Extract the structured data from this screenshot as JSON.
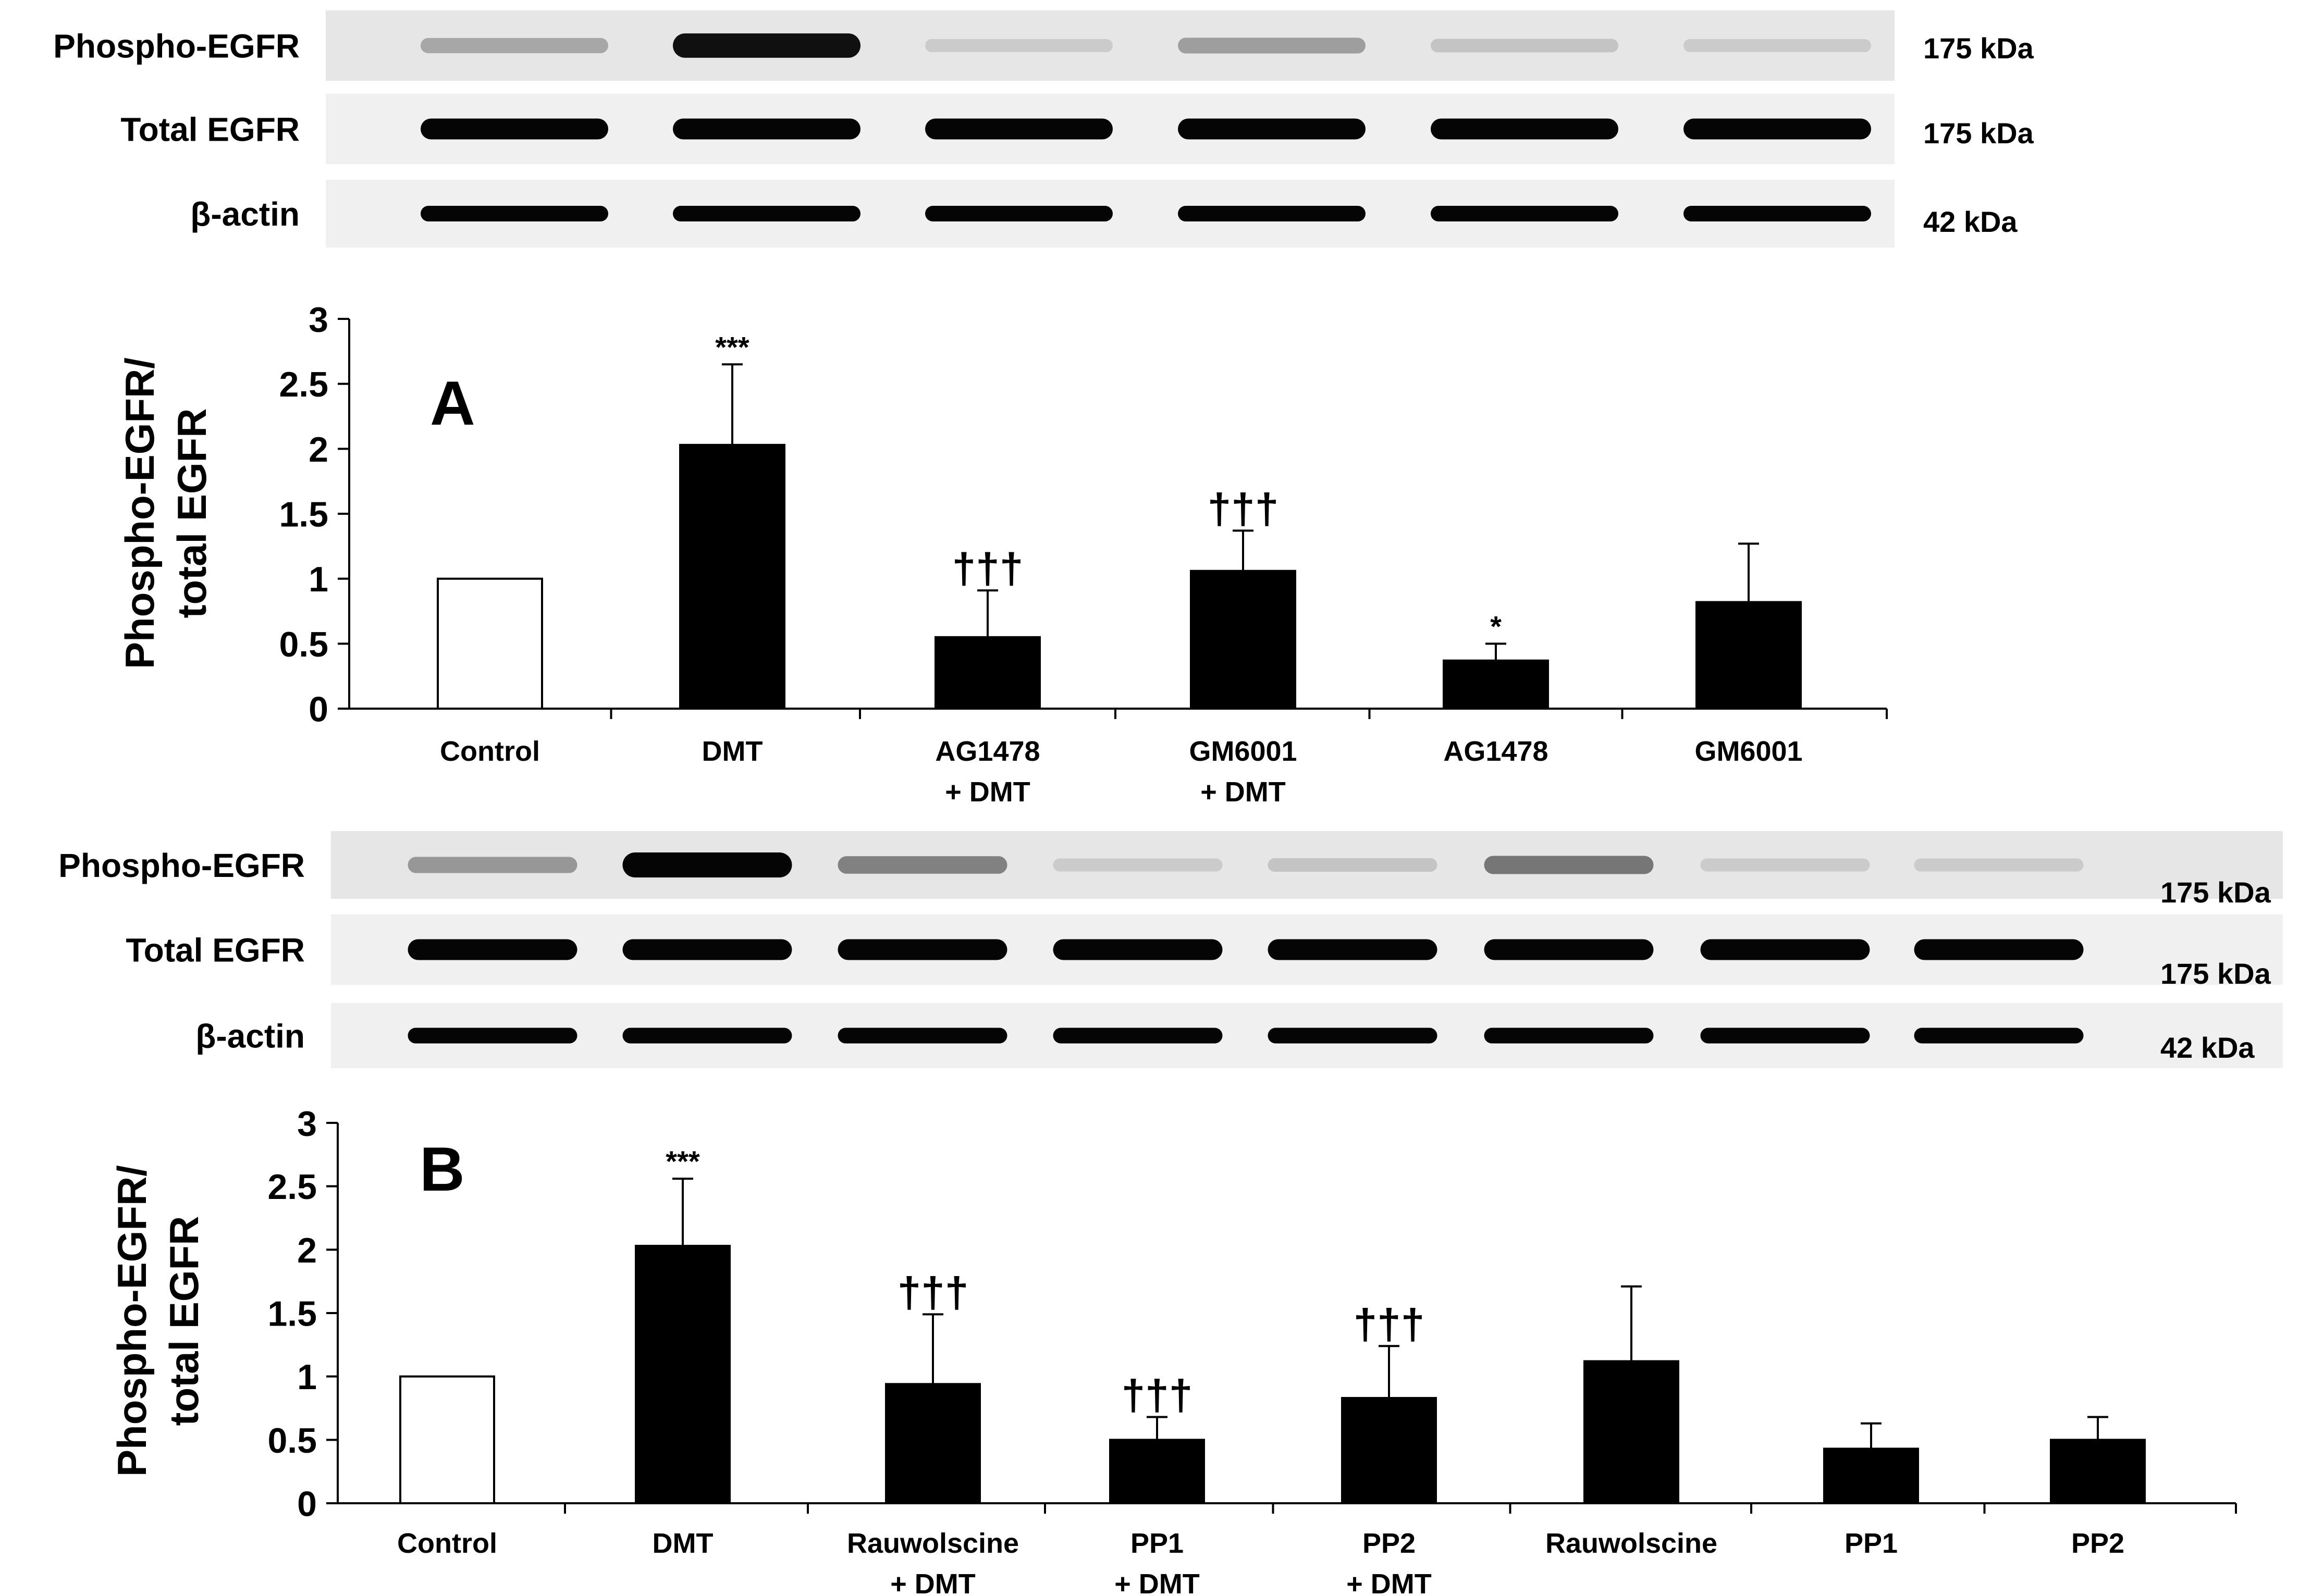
{
  "blots": [
    {
      "rows": [
        {
          "label": "Phospho-EGFR",
          "kda": "175  kDa",
          "intensities": [
            0.28,
            0.95,
            0.12,
            0.32,
            0.15,
            0.12
          ]
        },
        {
          "label": "Total EGFR",
          "kda": "175  kDa",
          "intensities": [
            1,
            1,
            1,
            1,
            1,
            1
          ]
        },
        {
          "label": "β-actin",
          "kda": "42  kDa",
          "intensities": [
            1,
            1,
            1,
            1,
            1,
            1
          ]
        }
      ]
    },
    {
      "rows": [
        {
          "label": "Phospho-EGFR",
          "kda": "175  kDa",
          "intensities": [
            0.35,
            1.0,
            0.45,
            0.12,
            0.15,
            0.5,
            0.12,
            0.12
          ]
        },
        {
          "label": "Total EGFR",
          "kda": "175  kDa",
          "intensities": [
            1,
            1,
            1,
            1,
            1,
            1,
            1,
            1
          ]
        },
        {
          "label": "β-actin",
          "kda": "42  kDa",
          "intensities": [
            1,
            1,
            1,
            1,
            1,
            1,
            1,
            1
          ]
        }
      ]
    }
  ],
  "chart_data": [
    {
      "type": "bar",
      "panel_label": "A",
      "ylabel": [
        "Phospho-EGFR/",
        "total EGFR"
      ],
      "ylim": [
        0,
        3
      ],
      "yticks": [
        "0",
        "0.5",
        "1",
        "1.5",
        "2",
        "2.5",
        "3"
      ],
      "categories": [
        [
          "Control"
        ],
        [
          "DMT"
        ],
        [
          "AG1478",
          "+ DMT"
        ],
        [
          "GM6001",
          "+ DMT"
        ],
        [
          "AG1478"
        ],
        [
          "GM6001"
        ]
      ],
      "values": [
        1.0,
        2.03,
        0.55,
        1.06,
        0.37,
        0.82
      ],
      "errors": [
        0,
        0.62,
        0.36,
        0.31,
        0.13,
        0.45
      ],
      "annotations": [
        "",
        "***",
        "†††",
        "†††",
        "*",
        ""
      ],
      "fill": [
        "#ffffff",
        "#000000",
        "#000000",
        "#000000",
        "#000000",
        "#000000"
      ],
      "grid": false
    },
    {
      "type": "bar",
      "panel_label": "B",
      "ylabel": [
        "Phospho-EGFR/",
        "total EGFR"
      ],
      "ylim": [
        0,
        3
      ],
      "yticks": [
        "0",
        "0.5",
        "1",
        "1.5",
        "2",
        "2.5",
        "3"
      ],
      "categories": [
        [
          "Control"
        ],
        [
          "DMT"
        ],
        [
          "Rauwolscine",
          "+ DMT"
        ],
        [
          "PP1",
          "+ DMT"
        ],
        [
          "PP2",
          "+ DMT"
        ],
        [
          "Rauwolscine"
        ],
        [
          "PP1"
        ],
        [
          "PP2"
        ]
      ],
      "values": [
        1.0,
        2.03,
        0.94,
        0.5,
        0.83,
        1.12,
        0.43,
        0.5
      ],
      "errors": [
        0,
        0.53,
        0.55,
        0.18,
        0.41,
        0.59,
        0.2,
        0.18
      ],
      "annotations": [
        "",
        "***",
        "†††",
        "†††",
        "†††",
        "",
        "",
        ""
      ],
      "fill": [
        "#ffffff",
        "#000000",
        "#000000",
        "#000000",
        "#000000",
        "#000000",
        "#000000",
        "#000000"
      ],
      "grid": false
    }
  ]
}
